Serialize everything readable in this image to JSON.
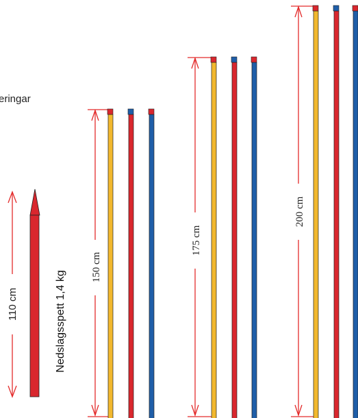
{
  "header_fragment": "eringar",
  "spett": {
    "length_label": "110 cm",
    "caption": "Nedslagsspett 1,4 kg"
  },
  "groups": [
    {
      "length_label": "150 cm",
      "colors": [
        "yellow",
        "red",
        "blue"
      ]
    },
    {
      "length_label": "175 cm",
      "colors": [
        "yellow",
        "red",
        "blue"
      ]
    },
    {
      "length_label": "200 cm",
      "colors": [
        "yellow",
        "red",
        "blue"
      ]
    }
  ],
  "colors": {
    "yellow": "#f2b82e",
    "red": "#d9272e",
    "blue": "#1f5ea8",
    "arrow": "#e32b2b",
    "outline": "#222222"
  }
}
